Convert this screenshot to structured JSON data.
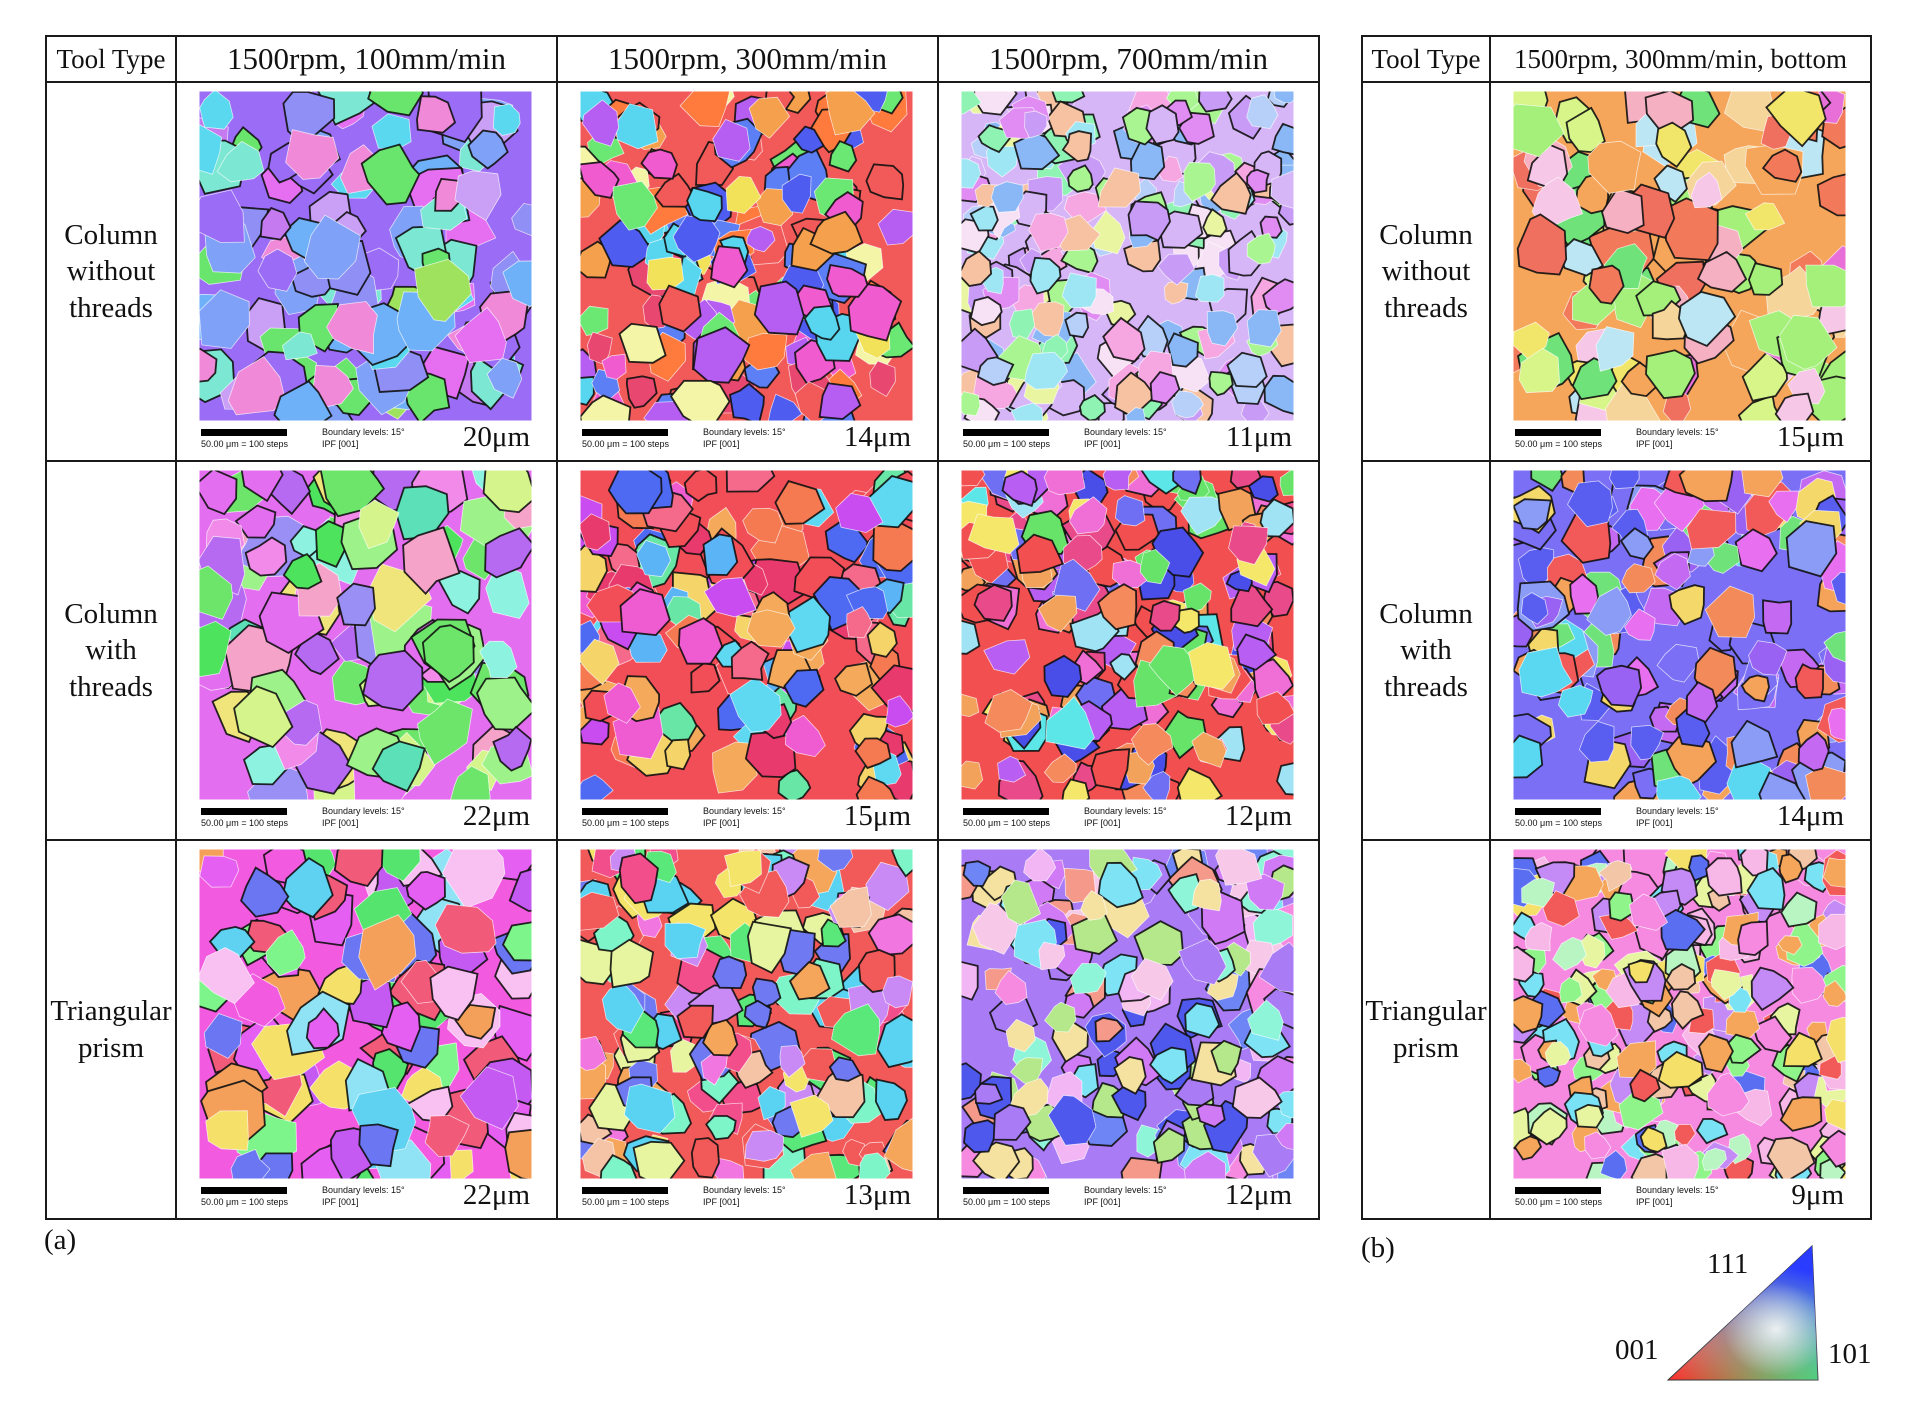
{
  "panel_a": {
    "label": "(a)",
    "header_tool_type": "Tool Type",
    "columns": [
      "1500rpm, 100mm/min",
      "1500rpm, 300mm/min",
      "1500rpm, 700mm/min"
    ],
    "rows": [
      {
        "tool": "Column without threads",
        "tool_lines": [
          "Column",
          "without",
          "threads"
        ],
        "cells": [
          {
            "size": "20μm",
            "scale": "50.00 μm = 100 steps",
            "boundary": "Boundary levels: 15°",
            "ipf": "IPF [001]",
            "palette": [
              "#9b6cf5",
              "#7fa1f8",
              "#c57af0",
              "#69e46c",
              "#e56ff0",
              "#8f8ff6",
              "#7ce7d2",
              "#9fe25e",
              "#f08ad8",
              "#6fb1f9",
              "#c9a0f5",
              "#59d8f0"
            ]
          },
          {
            "size": "14μm",
            "scale": "50.00 μm = 100 steps",
            "boundary": "Boundary levels: 15°",
            "ipf": "IPF [001]",
            "palette": [
              "#f25a5a",
              "#5d7ff5",
              "#f5a04c",
              "#59d6ef",
              "#b65df2",
              "#f2e25a",
              "#f05ccf",
              "#6be773",
              "#ff7a3d",
              "#4e5cf0",
              "#f5f5a8",
              "#e8486f"
            ]
          },
          {
            "size": "11μm",
            "scale": "50.00 μm = 100 steps",
            "boundary": "Boundary levels: 15°",
            "ipf": "IPF [001]",
            "palette": [
              "#d7b6f7",
              "#8ff3b4",
              "#f6a6e1",
              "#b7d0fa",
              "#e9f5a0",
              "#9fe6f5",
              "#f7c2a2",
              "#c89cf6",
              "#e08cf3",
              "#a8f592",
              "#f7e2f5",
              "#8ab8f6"
            ]
          }
        ]
      },
      {
        "tool": "Column with threads",
        "tool_lines": [
          "Column",
          "with",
          "threads"
        ],
        "cells": [
          {
            "size": "22μm",
            "scale": "50.00 μm = 100 steps",
            "boundary": "Boundary levels: 15°",
            "ipf": "IPF [001]",
            "palette": [
              "#e46ef0",
              "#6de56a",
              "#9ef28a",
              "#f18ae9",
              "#5ce0b8",
              "#d5f58c",
              "#b56af1",
              "#8df3e0",
              "#f6a3c9",
              "#4ee35d",
              "#f0e57a",
              "#9a8ff4"
            ]
          },
          {
            "size": "15μm",
            "scale": "50.00 μm = 100 steps",
            "boundary": "Boundary levels: 15°",
            "ipf": "IPF [001]",
            "palette": [
              "#f24e58",
              "#f57a52",
              "#5fd8f2",
              "#ef5bd1",
              "#4f6af2",
              "#f5a95a",
              "#68e6a5",
              "#e93a6e",
              "#f56a8a",
              "#5bb4f5",
              "#f5d46a",
              "#c94cf0"
            ]
          },
          {
            "size": "12μm",
            "scale": "50.00 μm = 100 steps",
            "boundary": "Boundary levels: 15°",
            "ipf": "IPF [001]",
            "palette": [
              "#f25050",
              "#f2a25a",
              "#5de6e8",
              "#f06fd6",
              "#6f6ff4",
              "#f5e76a",
              "#67e36a",
              "#4a4ee8",
              "#f58a5c",
              "#e94a8a",
              "#9fe3f5",
              "#b85ef2"
            ]
          }
        ]
      },
      {
        "tool": "Triangular prism",
        "tool_lines": [
          "Triangular",
          "prism"
        ],
        "cells": [
          {
            "size": "22μm",
            "scale": "50.00 μm = 100 steps",
            "boundary": "Boundary levels: 15°",
            "ipf": "IPF [001]",
            "palette": [
              "#f25ae0",
              "#7ef58a",
              "#5fd2f2",
              "#f5e06a",
              "#e55ff2",
              "#f25a7a",
              "#8fe3f5",
              "#c45af2",
              "#f5a05a",
              "#55e46e",
              "#f9c0f2",
              "#6a76f2"
            ]
          },
          {
            "size": "13μm",
            "scale": "50.00 μm = 100 steps",
            "boundary": "Boundary levels: 15°",
            "ipf": "IPF [001]",
            "palette": [
              "#f25a5a",
              "#5be87a",
              "#f5e46a",
              "#5ad3f2",
              "#f276e0",
              "#f5a65a",
              "#6f7af2",
              "#e8f5a0",
              "#f24e8c",
              "#c98af5",
              "#7ef5c9",
              "#f5c4a6"
            ]
          },
          {
            "size": "12μm",
            "scale": "50.00 μm = 100 steps",
            "boundary": "Boundary levels: 15°",
            "ipf": "IPF [001]",
            "palette": [
              "#a97cf5",
              "#f58ae0",
              "#6e86f5",
              "#f7c8e8",
              "#8ff5d9",
              "#f5e2a0",
              "#d17af5",
              "#7ee4f5",
              "#f59a8a",
              "#b5e88a",
              "#4e58ec",
              "#f2b6f5"
            ]
          }
        ]
      }
    ]
  },
  "panel_b": {
    "label": "(b)",
    "header_tool_type": "Tool Type",
    "column": "1500rpm, 300mm/min, bottom",
    "rows": [
      {
        "tool": "Column without threads",
        "tool_lines": [
          "Column",
          "without",
          "threads"
        ],
        "size": "15μm",
        "scale": "50.00 μm = 100 steps",
        "boundary": "Boundary levels: 15°",
        "ipf": "IPF [001]",
        "palette": [
          "#f5a65a",
          "#a4f07a",
          "#f2e66a",
          "#f27a5a",
          "#f6c7e6",
          "#d8f58a",
          "#6fe27a",
          "#f5b0c2",
          "#e86fd8",
          "#f5d59a",
          "#bde6f5",
          "#f07060"
        ]
      },
      {
        "tool": "Column with threads",
        "tool_lines": [
          "Column",
          "with",
          "threads"
        ],
        "size": "14μm",
        "scale": "50.00 μm = 100 steps",
        "boundary": "Boundary levels: 15°",
        "ipf": "IPF [001]",
        "palette": [
          "#7a6ff5",
          "#5a5ef0",
          "#f5a35a",
          "#c46af2",
          "#5ad8f2",
          "#f25a5a",
          "#8a9cf5",
          "#f28a5a",
          "#e86ff0",
          "#f5d86a",
          "#9a62f2",
          "#6fe37a"
        ]
      },
      {
        "tool": "Triangular prism",
        "tool_lines": [
          "Triangular",
          "prism"
        ],
        "size": "9μm",
        "scale": "50.00 μm = 100 steps",
        "boundary": "Boundary levels: 15°",
        "ipf": "IPF [001]",
        "palette": [
          "#f58ae0",
          "#f7b8e8",
          "#8ff58a",
          "#b8f5c2",
          "#f5a65a",
          "#e8f5a0",
          "#f25a5a",
          "#7ae2f5",
          "#c48af5",
          "#f5e06a",
          "#5a6ef2",
          "#f2c6a6"
        ]
      }
    ]
  },
  "legend": {
    "top_label": "111",
    "left_label": "001",
    "right_label": "101",
    "colors": {
      "c001": "#ff2a2a",
      "c101": "#22d24a",
      "c111": "#2a3cff"
    }
  }
}
